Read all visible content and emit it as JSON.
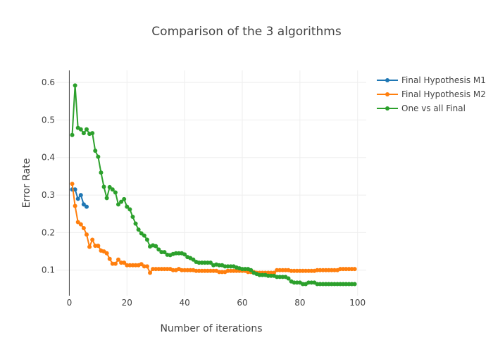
{
  "chart_data": {
    "type": "line",
    "title": "Comparison of the 3 algorithms",
    "xlabel": "Number of iterations",
    "ylabel": "Error Rate",
    "xlim": [
      -4.5,
      103
    ],
    "ylim": [
      0.032,
      0.632
    ],
    "xticks": [
      0,
      20,
      40,
      60,
      80,
      100
    ],
    "xtick_labels": [
      "0",
      "20",
      "40",
      "60",
      "80",
      "100"
    ],
    "yticks": [
      0.1,
      0.2,
      0.3,
      0.4,
      0.5,
      0.6
    ],
    "ytick_labels": [
      "0.1",
      "0.2",
      "0.3",
      "0.4",
      "0.5",
      "0.6"
    ],
    "grid": true,
    "legend_position": "top-right",
    "series": [
      {
        "name": "Final Hypothesis M1",
        "color": "#1f77b4",
        "x": [
          1,
          2,
          3,
          4,
          5,
          6
        ],
        "y": [
          0.315,
          0.315,
          0.29,
          0.3,
          0.275,
          0.269
        ]
      },
      {
        "name": "Final Hypothesis M2",
        "color": "#ff7f0e",
        "x": [
          1,
          2,
          3,
          4,
          5,
          6,
          7,
          8,
          9,
          10,
          11,
          12,
          13,
          14,
          15,
          16,
          17,
          18,
          19,
          20,
          21,
          22,
          23,
          24,
          25,
          26,
          27,
          28,
          29,
          30,
          31,
          32,
          33,
          34,
          35,
          36,
          37,
          38,
          39,
          40,
          41,
          42,
          43,
          44,
          45,
          46,
          47,
          48,
          49,
          50,
          51,
          52,
          53,
          54,
          55,
          56,
          57,
          58,
          59,
          60,
          61,
          62,
          63,
          64,
          65,
          66,
          67,
          68,
          69,
          70,
          71,
          72,
          73,
          74,
          75,
          76,
          77,
          78,
          79,
          80,
          81,
          82,
          83,
          84,
          85,
          86,
          87,
          88,
          89,
          90,
          91,
          92,
          93,
          94,
          95,
          96,
          97,
          98,
          99
        ],
        "y": [
          0.33,
          0.271,
          0.228,
          0.222,
          0.212,
          0.195,
          0.162,
          0.181,
          0.165,
          0.165,
          0.152,
          0.15,
          0.145,
          0.13,
          0.117,
          0.117,
          0.128,
          0.12,
          0.12,
          0.113,
          0.113,
          0.113,
          0.113,
          0.113,
          0.116,
          0.11,
          0.11,
          0.093,
          0.103,
          0.103,
          0.103,
          0.103,
          0.103,
          0.103,
          0.103,
          0.1,
          0.1,
          0.103,
          0.1,
          0.1,
          0.1,
          0.1,
          0.1,
          0.098,
          0.098,
          0.098,
          0.098,
          0.098,
          0.098,
          0.098,
          0.098,
          0.095,
          0.095,
          0.095,
          0.098,
          0.098,
          0.098,
          0.098,
          0.098,
          0.098,
          0.098,
          0.095,
          0.095,
          0.095,
          0.093,
          0.093,
          0.093,
          0.093,
          0.093,
          0.093,
          0.093,
          0.1,
          0.1,
          0.1,
          0.1,
          0.1,
          0.098,
          0.098,
          0.098,
          0.098,
          0.098,
          0.098,
          0.098,
          0.098,
          0.098,
          0.1,
          0.1,
          0.1,
          0.1,
          0.1,
          0.1,
          0.1,
          0.1,
          0.103,
          0.103,
          0.103,
          0.103,
          0.103,
          0.103
        ]
      },
      {
        "name": "One vs all Final",
        "color": "#2ca02c",
        "x": [
          1,
          2,
          3,
          4,
          5,
          6,
          7,
          8,
          9,
          10,
          11,
          12,
          13,
          14,
          15,
          16,
          17,
          18,
          19,
          20,
          21,
          22,
          23,
          24,
          25,
          26,
          27,
          28,
          29,
          30,
          31,
          32,
          33,
          34,
          35,
          36,
          37,
          38,
          39,
          40,
          41,
          42,
          43,
          44,
          45,
          46,
          47,
          48,
          49,
          50,
          51,
          52,
          53,
          54,
          55,
          56,
          57,
          58,
          59,
          60,
          61,
          62,
          63,
          64,
          65,
          66,
          67,
          68,
          69,
          70,
          71,
          72,
          73,
          74,
          75,
          76,
          77,
          78,
          79,
          80,
          81,
          82,
          83,
          84,
          85,
          86,
          87,
          88,
          89,
          90,
          91,
          92,
          93,
          94,
          95,
          96,
          97,
          98,
          99
        ],
        "y": [
          0.46,
          0.592,
          0.479,
          0.475,
          0.465,
          0.475,
          0.463,
          0.465,
          0.418,
          0.402,
          0.36,
          0.322,
          0.292,
          0.321,
          0.315,
          0.307,
          0.275,
          0.282,
          0.289,
          0.269,
          0.262,
          0.242,
          0.224,
          0.208,
          0.198,
          0.192,
          0.181,
          0.163,
          0.166,
          0.164,
          0.155,
          0.148,
          0.148,
          0.141,
          0.14,
          0.143,
          0.145,
          0.145,
          0.145,
          0.142,
          0.135,
          0.132,
          0.128,
          0.122,
          0.12,
          0.12,
          0.12,
          0.12,
          0.12,
          0.113,
          0.115,
          0.113,
          0.113,
          0.11,
          0.11,
          0.11,
          0.11,
          0.107,
          0.105,
          0.103,
          0.103,
          0.103,
          0.1,
          0.093,
          0.09,
          0.087,
          0.087,
          0.087,
          0.085,
          0.085,
          0.085,
          0.082,
          0.082,
          0.082,
          0.082,
          0.078,
          0.07,
          0.067,
          0.067,
          0.067,
          0.063,
          0.063,
          0.067,
          0.067,
          0.067,
          0.063,
          0.063,
          0.063,
          0.063,
          0.063,
          0.063,
          0.063,
          0.063,
          0.063,
          0.063,
          0.063,
          0.063,
          0.063,
          0.063
        ]
      }
    ]
  }
}
